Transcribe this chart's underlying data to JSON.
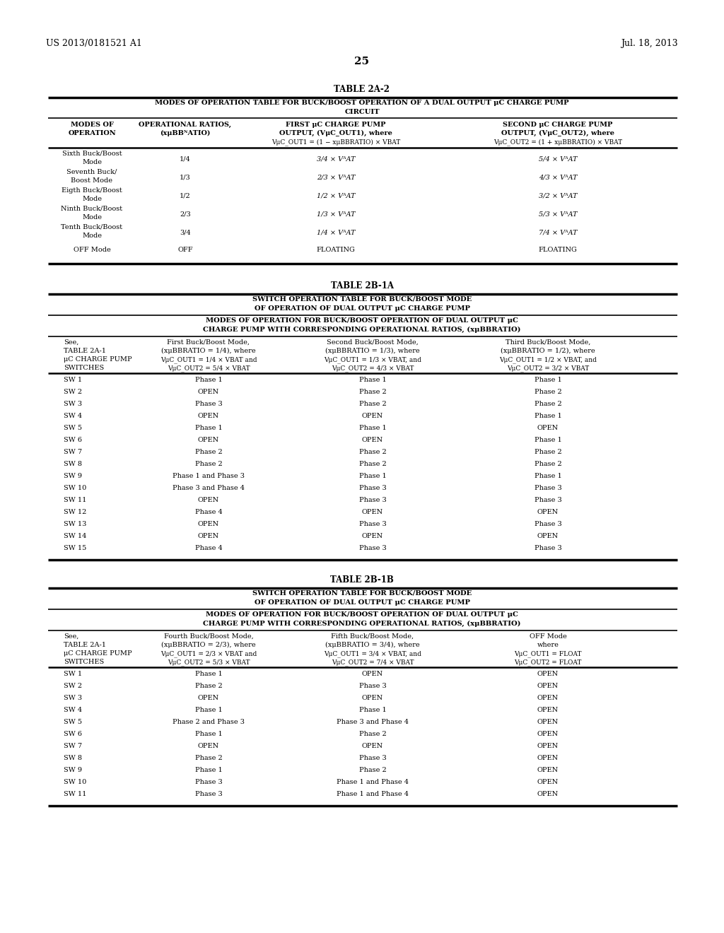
{
  "background_color": "#ffffff",
  "header_left": "US 2013/0181521 A1",
  "header_right": "Jul. 18, 2013",
  "page_number": "25"
}
